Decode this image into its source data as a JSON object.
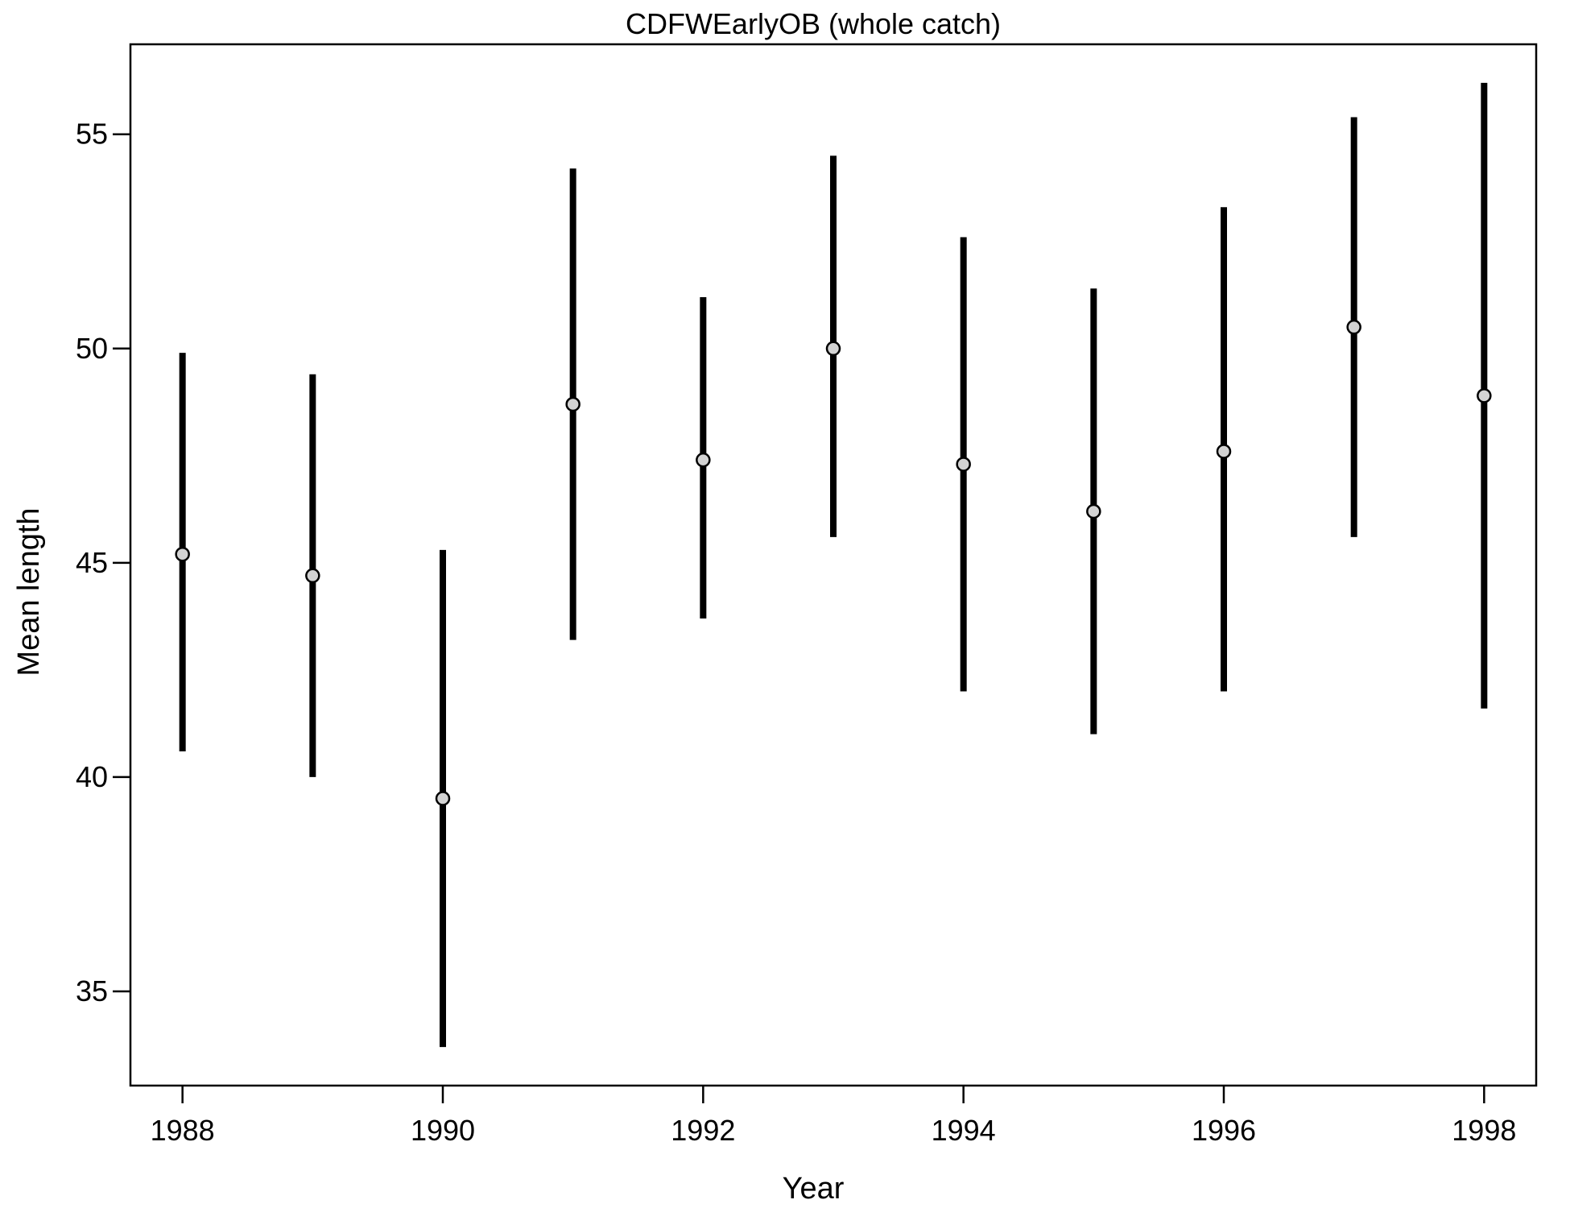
{
  "chart_data": {
    "type": "scatter",
    "title": "CDFWEarlyOB (whole catch)",
    "xlabel": "Year",
    "ylabel": "Mean length",
    "xlim": [
      1987.6,
      1998.4
    ],
    "ylim": [
      32.8,
      57.1
    ],
    "x_ticks": [
      1988,
      1990,
      1992,
      1994,
      1996,
      1998
    ],
    "y_ticks": [
      35,
      40,
      45,
      50,
      55
    ],
    "grid": false,
    "legend": "none",
    "error_bars": true,
    "points": [
      {
        "x": 1988,
        "y": 45.2,
        "lower": 40.6,
        "upper": 49.9
      },
      {
        "x": 1989,
        "y": 44.7,
        "lower": 40.0,
        "upper": 49.4
      },
      {
        "x": 1990,
        "y": 39.5,
        "lower": 33.7,
        "upper": 45.3
      },
      {
        "x": 1991,
        "y": 48.7,
        "lower": 43.2,
        "upper": 54.2
      },
      {
        "x": 1992,
        "y": 47.4,
        "lower": 43.7,
        "upper": 51.2
      },
      {
        "x": 1993,
        "y": 50.0,
        "lower": 45.6,
        "upper": 54.5
      },
      {
        "x": 1994,
        "y": 47.3,
        "lower": 42.0,
        "upper": 52.6
      },
      {
        "x": 1995,
        "y": 46.2,
        "lower": 41.0,
        "upper": 51.4
      },
      {
        "x": 1996,
        "y": 47.6,
        "lower": 42.0,
        "upper": 53.3
      },
      {
        "x": 1997,
        "y": 50.5,
        "lower": 45.6,
        "upper": 55.4
      },
      {
        "x": 1998,
        "y": 48.9,
        "lower": 41.6,
        "upper": 56.2
      }
    ],
    "colors": {
      "bar": "#000000",
      "point_fill": "#d3d3d3",
      "point_stroke": "#000000",
      "frame": "#000000"
    }
  }
}
